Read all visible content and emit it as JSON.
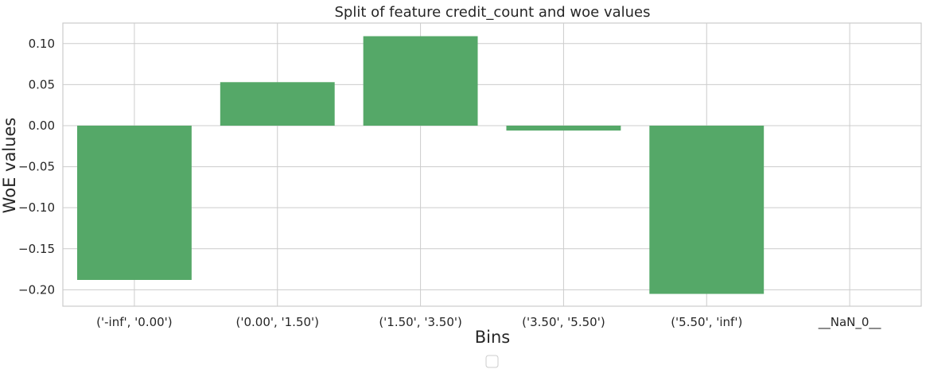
{
  "chart_data": {
    "type": "bar",
    "title": "Split of feature credit_count and woe values",
    "xlabel": "Bins",
    "ylabel": "WoE values",
    "categories": [
      "('-inf', '0.00')",
      "('0.00', '1.50')",
      "('1.50', '3.50')",
      "('3.50', '5.50')",
      "('5.50', 'inf')",
      "__NaN_0__"
    ],
    "values": [
      -0.188,
      0.053,
      0.109,
      -0.006,
      -0.205,
      0.0
    ],
    "ylim": [
      -0.22,
      0.125
    ],
    "yticks": [
      0.1,
      0.05,
      0.0,
      -0.05,
      -0.1,
      -0.15,
      -0.2
    ],
    "ytick_labels": [
      "0.10",
      "0.05",
      "0.00",
      "−0.05",
      "−0.10",
      "−0.15",
      "−0.20"
    ],
    "grid": true,
    "legend": "bottom-center (empty)",
    "bar_color": "#55a868",
    "grid_color": "#cccccc",
    "axes_edge_color": "#cccccc"
  }
}
